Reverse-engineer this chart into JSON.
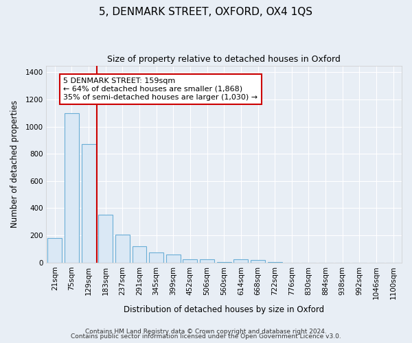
{
  "title": "5, DENMARK STREET, OXFORD, OX4 1QS",
  "subtitle": "Size of property relative to detached houses in Oxford",
  "xlabel": "Distribution of detached houses by size in Oxford",
  "ylabel": "Number of detached properties",
  "bar_color": "#dae8f5",
  "bar_edge_color": "#6aaed6",
  "categories": [
    "21sqm",
    "75sqm",
    "129sqm",
    "183sqm",
    "237sqm",
    "291sqm",
    "345sqm",
    "399sqm",
    "452sqm",
    "506sqm",
    "560sqm",
    "614sqm",
    "668sqm",
    "722sqm",
    "776sqm",
    "830sqm",
    "884sqm",
    "938sqm",
    "992sqm",
    "1046sqm",
    "1100sqm"
  ],
  "values": [
    182,
    1100,
    870,
    350,
    205,
    120,
    75,
    60,
    25,
    25,
    2,
    25,
    20,
    2,
    0,
    0,
    0,
    0,
    0,
    0,
    0
  ],
  "ylim": [
    0,
    1450
  ],
  "yticks": [
    0,
    200,
    400,
    600,
    800,
    1000,
    1200,
    1400
  ],
  "red_line_x": 3.0,
  "annotation_text": "5 DENMARK STREET: 159sqm\n← 64% of detached houses are smaller (1,868)\n35% of semi-detached houses are larger (1,030) →",
  "annotation_box_color": "white",
  "annotation_box_edge": "#cc0000",
  "footer_line1": "Contains HM Land Registry data © Crown copyright and database right 2024.",
  "footer_line2": "Contains public sector information licensed under the Open Government Licence v3.0.",
  "background_color": "#e8eef5",
  "plot_bg_color": "#e8eef5",
  "grid_color": "#ffffff",
  "title_fontsize": 11,
  "subtitle_fontsize": 9,
  "axis_label_fontsize": 8.5,
  "tick_fontsize": 7.5,
  "annotation_fontsize": 8,
  "footer_fontsize": 6.5
}
